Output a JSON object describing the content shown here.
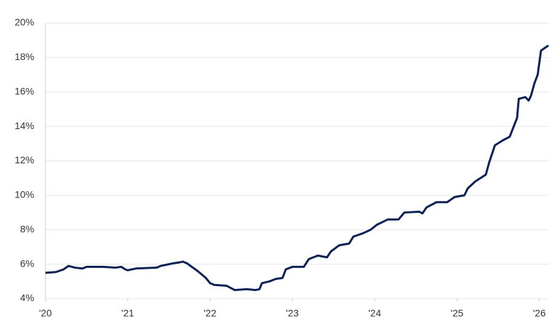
{
  "chart_data": {
    "type": "line",
    "x": [
      2020.0,
      2020.13,
      2020.22,
      2020.28,
      2020.36,
      2020.45,
      2020.5,
      2020.7,
      2020.85,
      2020.92,
      2020.97,
      2021.0,
      2021.1,
      2021.35,
      2021.4,
      2021.55,
      2021.62,
      2021.67,
      2021.72,
      2021.85,
      2021.95,
      2022.0,
      2022.05,
      2022.2,
      2022.3,
      2022.45,
      2022.55,
      2022.6,
      2022.63,
      2022.72,
      2022.8,
      2022.88,
      2022.92,
      2023.0,
      2023.14,
      2023.2,
      2023.31,
      2023.42,
      2023.47,
      2023.57,
      2023.69,
      2023.74,
      2023.86,
      2023.95,
      2024.03,
      2024.16,
      2024.29,
      2024.36,
      2024.54,
      2024.58,
      2024.63,
      2024.75,
      2024.88,
      2024.97,
      2025.09,
      2025.13,
      2025.22,
      2025.35,
      2025.39,
      2025.46,
      2025.56,
      2025.64,
      2025.73,
      2025.75,
      2025.83,
      2025.87,
      2025.9,
      2025.94,
      2025.98,
      2026.02,
      2026.11
    ],
    "series": [
      {
        "color": "#0d2157",
        "values": [
          5.5,
          5.55,
          5.7,
          5.9,
          5.8,
          5.75,
          5.85,
          5.85,
          5.8,
          5.85,
          5.7,
          5.65,
          5.75,
          5.8,
          5.9,
          6.05,
          6.1,
          6.15,
          6.05,
          5.6,
          5.2,
          4.9,
          4.8,
          4.75,
          4.5,
          4.55,
          4.5,
          4.55,
          4.9,
          5.0,
          5.15,
          5.2,
          5.7,
          5.85,
          5.85,
          6.3,
          6.5,
          6.4,
          6.75,
          7.1,
          7.2,
          7.6,
          7.8,
          8.0,
          8.3,
          8.6,
          8.6,
          9.0,
          9.05,
          8.95,
          9.3,
          9.6,
          9.6,
          9.9,
          10.0,
          10.4,
          10.8,
          11.2,
          11.9,
          12.9,
          13.2,
          13.4,
          14.5,
          15.6,
          15.7,
          15.5,
          15.8,
          16.5,
          17.0,
          18.4,
          18.7
        ]
      }
    ],
    "xlim": [
      2020,
      2026.12
    ],
    "xticks": [
      {
        "value": 2020,
        "label": "'20"
      },
      {
        "value": 2021,
        "label": "'21"
      },
      {
        "value": 2022,
        "label": "'22"
      },
      {
        "value": 2023,
        "label": "'23"
      },
      {
        "value": 2024,
        "label": "'24"
      },
      {
        "value": 2025,
        "label": "'25"
      },
      {
        "value": 2026,
        "label": "'26"
      }
    ],
    "ylim": [
      4,
      20
    ],
    "yticks": [
      {
        "value": 4,
        "label": "4%"
      },
      {
        "value": 6,
        "label": "6%"
      },
      {
        "value": 8,
        "label": "8%"
      },
      {
        "value": 10,
        "label": "10%"
      },
      {
        "value": 12,
        "label": "12%"
      },
      {
        "value": 14,
        "label": "14%"
      },
      {
        "value": 16,
        "label": "16%"
      },
      {
        "value": 18,
        "label": "18%"
      },
      {
        "value": 20,
        "label": "20%"
      }
    ],
    "grid": true
  }
}
